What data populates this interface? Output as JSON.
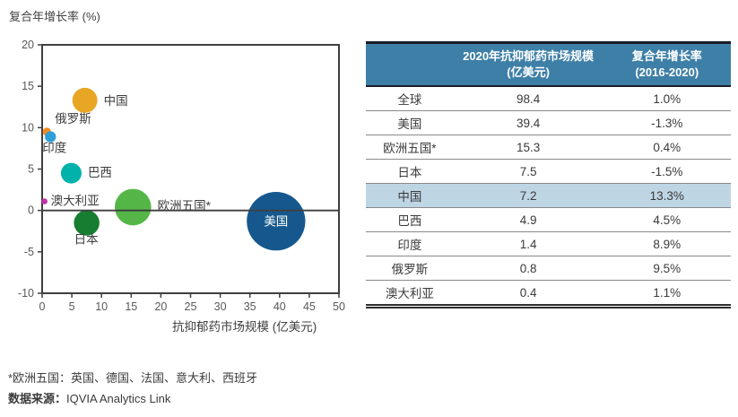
{
  "chart": {
    "y_axis_title": "复合年增长率 (%)",
    "x_axis_title": "抗抑郁药市场规模 (亿美元)"
  },
  "chart_data": {
    "type": "scatter",
    "subtype": "bubble",
    "title": "",
    "xlabel": "抗抑郁药市场规模 (亿美元)",
    "ylabel": "复合年增长率 (%)",
    "xlim": [
      0,
      50
    ],
    "ylim": [
      -10,
      20
    ],
    "x_ticks": [
      0,
      5,
      10,
      15,
      20,
      25,
      30,
      35,
      40,
      45,
      50
    ],
    "y_ticks": [
      20,
      15,
      10,
      5,
      0,
      -5,
      -10
    ],
    "grid": false,
    "zero_line": true,
    "bubble_size": "area proportional to market size (x value)",
    "points": [
      {
        "name": "中国",
        "x": 7.2,
        "y": 13.3,
        "color": "#E7A623"
      },
      {
        "name": "俄罗斯",
        "x": 0.8,
        "y": 9.5,
        "color": "#F28D22"
      },
      {
        "name": "印度",
        "x": 1.4,
        "y": 8.9,
        "color": "#2E9FD8"
      },
      {
        "name": "巴西",
        "x": 4.9,
        "y": 4.5,
        "color": "#00B2A9"
      },
      {
        "name": "澳大利亚",
        "x": 0.4,
        "y": 1.1,
        "color": "#C232A8"
      },
      {
        "name": "欧洲五国*",
        "x": 15.3,
        "y": 0.4,
        "color": "#55B648"
      },
      {
        "name": "日本",
        "x": 7.5,
        "y": -1.5,
        "color": "#177D31"
      },
      {
        "name": "美国",
        "x": 39.4,
        "y": -1.3,
        "color": "#16588E"
      }
    ]
  },
  "table": {
    "header_bg": "#3E7FA7",
    "highlight_color": "#BED5E4",
    "header": {
      "col1": "",
      "col2_line1": "2020年抗抑郁药市场规模",
      "col2_line2": "(亿美元)",
      "col3_line1": "复合年增长率",
      "col3_line2": "(2016-2020)"
    },
    "rows": [
      {
        "name": "全球",
        "size": "98.4",
        "cagr": "1.0%",
        "highlight": false
      },
      {
        "name": "美国",
        "size": "39.4",
        "cagr": "-1.3%",
        "highlight": false
      },
      {
        "name": "欧洲五国*",
        "size": "15.3",
        "cagr": "0.4%",
        "highlight": false
      },
      {
        "name": "日本",
        "size": "7.5",
        "cagr": "-1.5%",
        "highlight": false
      },
      {
        "name": "中国",
        "size": "7.2",
        "cagr": "13.3%",
        "highlight": true
      },
      {
        "name": "巴西",
        "size": "4.9",
        "cagr": "4.5%",
        "highlight": false
      },
      {
        "name": "印度",
        "size": "1.4",
        "cagr": "8.9%",
        "highlight": false
      },
      {
        "name": "俄罗斯",
        "size": "0.8",
        "cagr": "9.5%",
        "highlight": false
      },
      {
        "name": "澳大利亚",
        "size": "0.4",
        "cagr": "1.1%",
        "highlight": false
      }
    ]
  },
  "footnotes": {
    "line1": "*欧洲五国：英国、德国、法国、意大利、西班牙",
    "source_label": "数据来源：",
    "source_value": "IQVIA Analytics Link"
  }
}
